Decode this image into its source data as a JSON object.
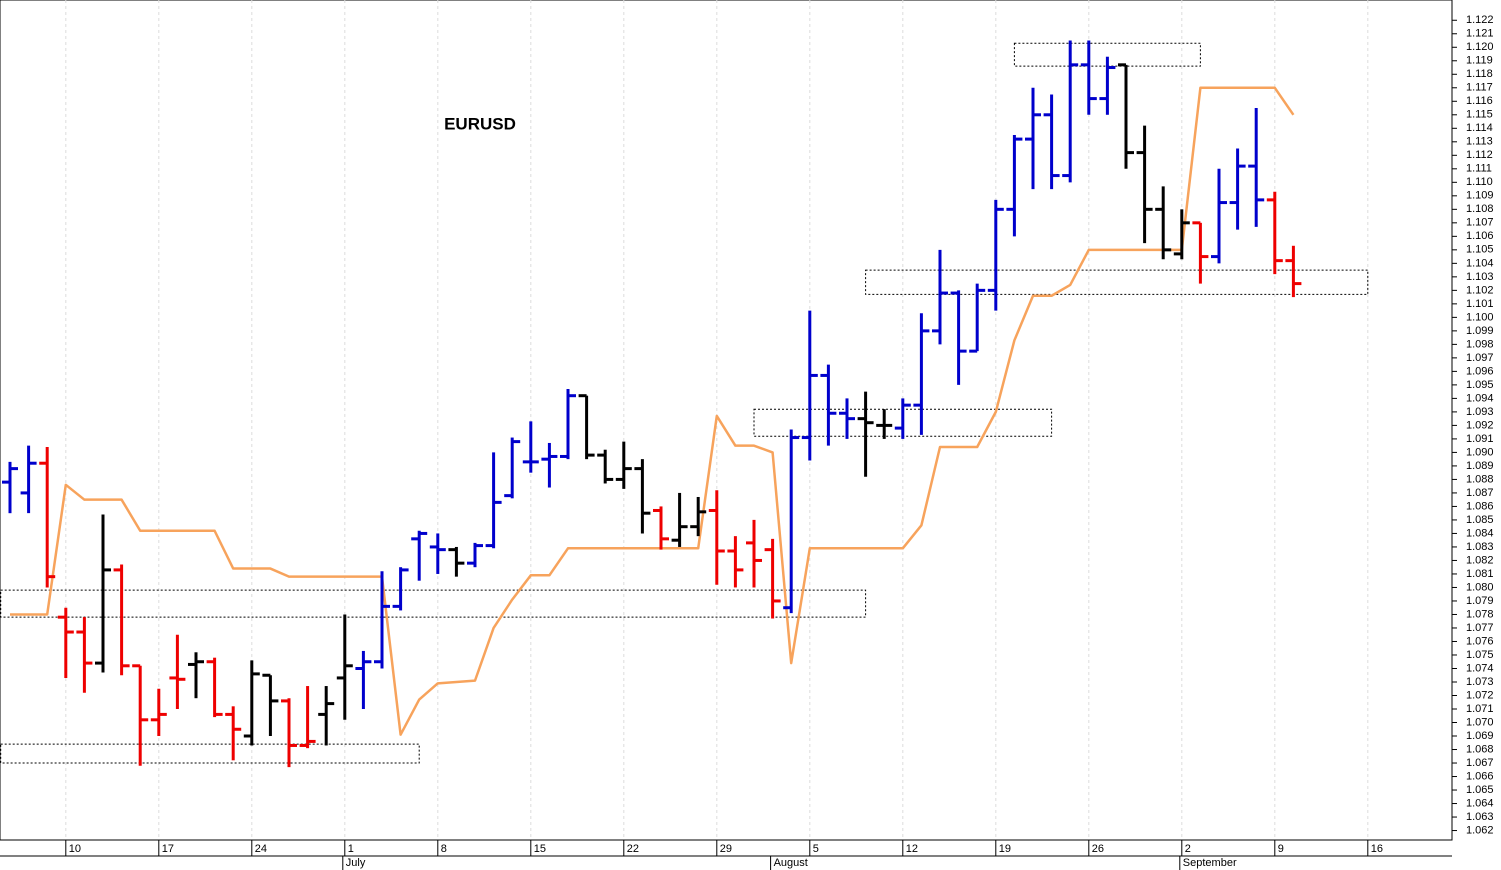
{
  "chart_data": {
    "type": "ohlc",
    "title": "EURUSD",
    "categories": [
      null,
      null,
      null,
      "10",
      null,
      null,
      null,
      null,
      "17",
      null,
      null,
      null,
      null,
      "24",
      null,
      null,
      null,
      null,
      "1",
      null,
      null,
      null,
      null,
      "8",
      null,
      null,
      null,
      null,
      "15",
      null,
      null,
      null,
      null,
      "22",
      null,
      null,
      null,
      null,
      "29",
      null,
      null,
      null,
      null,
      "5",
      null,
      null,
      null,
      null,
      "12",
      null,
      null,
      null,
      null,
      "19",
      null,
      null,
      null,
      null,
      "26",
      null,
      null,
      null,
      null,
      "2",
      null,
      null,
      null,
      null,
      "9",
      null,
      null,
      null,
      null,
      "16"
    ],
    "months": [
      null,
      null,
      null,
      null,
      null,
      null,
      null,
      null,
      null,
      null,
      null,
      null,
      null,
      null,
      null,
      null,
      null,
      null,
      "July",
      null,
      null,
      null,
      null,
      null,
      null,
      null,
      null,
      null,
      null,
      null,
      null,
      null,
      null,
      null,
      null,
      null,
      null,
      null,
      null,
      null,
      null,
      "August",
      null,
      null,
      null,
      null,
      null,
      null,
      null,
      null,
      null,
      null,
      null,
      null,
      null,
      null,
      null,
      null,
      null,
      null,
      null,
      null,
      null,
      "September",
      null,
      null,
      null,
      null,
      null,
      null,
      null,
      null,
      null,
      null
    ],
    "open": [
      1.0878,
      1.087,
      1.0892,
      1.0778,
      1.0767,
      1.0744,
      1.0813,
      1.0742,
      1.0702,
      1.0733,
      1.0743,
      1.0745,
      1.0706,
      1.069,
      1.0735,
      1.0716,
      1.0683,
      1.0706,
      1.0733,
      1.074,
      1.0745,
      1.0786,
      1.0836,
      1.083,
      1.0828,
      1.0818,
      1.0831,
      1.0868,
      1.0893,
      1.0895,
      1.0897,
      1.0942,
      1.0898,
      1.088,
      1.0888,
      1.0857,
      1.0835,
      1.0845,
      1.0857,
      1.0827,
      1.0833,
      1.0828,
      1.0785,
      1.0911,
      1.0957,
      1.0929,
      1.0925,
      1.092,
      1.0918,
      1.0935,
      1.099,
      1.1018,
      1.0975,
      1.102,
      1.108,
      1.1132,
      1.115,
      1.1105,
      1.1187,
      1.1162,
      1.1187,
      1.1122,
      1.108,
      1.1047,
      1.107,
      1.1045,
      1.1085,
      1.1112,
      1.1087,
      1.1042,
      null,
      null,
      null,
      null
    ],
    "high": [
      1.0893,
      1.0905,
      1.0904,
      1.0785,
      1.0778,
      1.0854,
      1.0817,
      1.0742,
      1.0725,
      1.0765,
      1.0752,
      1.0748,
      1.0712,
      1.0746,
      1.0735,
      1.0718,
      1.0727,
      1.0727,
      1.078,
      1.0753,
      1.0812,
      1.0815,
      1.0842,
      1.084,
      1.083,
      1.0833,
      1.09,
      1.0911,
      1.0923,
      1.0907,
      1.0947,
      1.0942,
      1.0902,
      1.0908,
      1.0895,
      1.086,
      1.087,
      1.0867,
      1.0872,
      1.0838,
      1.085,
      1.0836,
      1.0917,
      1.1005,
      1.0965,
      1.094,
      1.0945,
      1.0932,
      1.094,
      1.1003,
      1.105,
      1.102,
      1.1025,
      1.1087,
      1.1135,
      1.117,
      1.1165,
      1.1205,
      1.1205,
      1.1193,
      1.1187,
      1.1142,
      1.1097,
      1.108,
      1.107,
      1.111,
      1.1125,
      1.1155,
      1.1093,
      1.1053,
      null,
      null,
      null,
      null
    ],
    "low": [
      1.0855,
      1.0855,
      1.08,
      1.0733,
      1.0722,
      1.0737,
      1.0735,
      1.0668,
      1.069,
      1.071,
      1.0718,
      1.0704,
      1.0672,
      1.0683,
      1.069,
      1.0667,
      1.0681,
      1.0683,
      1.0702,
      1.071,
      1.074,
      1.0783,
      1.0805,
      1.081,
      1.0808,
      1.0815,
      1.0829,
      1.0866,
      1.0885,
      1.0874,
      1.0895,
      1.0895,
      1.0877,
      1.0873,
      1.084,
      1.0828,
      1.083,
      1.0838,
      1.0802,
      1.08,
      1.08,
      1.0777,
      1.0781,
      1.0894,
      1.0905,
      1.091,
      1.0882,
      1.091,
      1.091,
      1.0913,
      1.098,
      1.095,
      1.0975,
      1.1005,
      1.106,
      1.1095,
      1.1095,
      1.11,
      1.115,
      1.115,
      1.111,
      1.1055,
      1.1043,
      1.1043,
      1.1025,
      1.104,
      1.1065,
      1.1067,
      1.1032,
      1.1015,
      null,
      null,
      null,
      null
    ],
    "close": [
      1.0888,
      1.0892,
      1.0808,
      1.0767,
      1.0744,
      1.0813,
      1.0742,
      1.0702,
      1.0706,
      1.0732,
      1.0745,
      1.0706,
      1.0695,
      1.0736,
      1.0716,
      1.0683,
      1.0686,
      1.0714,
      1.0742,
      1.0745,
      1.0786,
      1.0813,
      1.084,
      1.0828,
      1.0818,
      1.0831,
      1.0863,
      1.0908,
      1.0893,
      1.0897,
      1.0942,
      1.0898,
      1.088,
      1.0888,
      1.0855,
      1.0836,
      1.0845,
      1.0856,
      1.0827,
      1.0813,
      1.082,
      1.079,
      1.0911,
      1.0957,
      1.0929,
      1.0925,
      1.0922,
      1.092,
      1.0935,
      1.099,
      1.1018,
      1.0975,
      1.102,
      1.108,
      1.1132,
      1.115,
      1.1105,
      1.1187,
      1.1162,
      1.1185,
      1.1122,
      1.108,
      1.105,
      1.107,
      1.1045,
      1.1085,
      1.1112,
      1.1087,
      1.1042,
      1.1025,
      null,
      null,
      null,
      null
    ],
    "bar_colors": [
      "#0000cc",
      "#0000cc",
      "#ee0000",
      "#ee0000",
      "#ee0000",
      "#000000",
      "#ee0000",
      "#ee0000",
      "#ee0000",
      "#ee0000",
      "#000000",
      "#ee0000",
      "#ee0000",
      "#000000",
      "#000000",
      "#ee0000",
      "#ee0000",
      "#000000",
      "#000000",
      "#0000cc",
      "#0000cc",
      "#0000cc",
      "#0000cc",
      "#0000cc",
      "#000000",
      "#0000cc",
      "#0000cc",
      "#0000cc",
      "#0000cc",
      "#0000cc",
      "#0000cc",
      "#000000",
      "#000000",
      "#000000",
      "#000000",
      "#ee0000",
      "#000000",
      "#000000",
      "#ee0000",
      "#ee0000",
      "#ee0000",
      "#ee0000",
      "#0000cc",
      "#0000cc",
      "#0000cc",
      "#0000cc",
      "#000000",
      "#000000",
      "#0000cc",
      "#0000cc",
      "#0000cc",
      "#0000cc",
      "#0000cc",
      "#0000cc",
      "#0000cc",
      "#0000cc",
      "#0000cc",
      "#0000cc",
      "#0000cc",
      "#0000cc",
      "#000000",
      "#000000",
      "#000000",
      "#000000",
      "#ee0000",
      "#0000cc",
      "#0000cc",
      "#0000cc",
      "#ee0000",
      "#ee0000",
      null,
      null,
      null,
      null
    ],
    "line": {
      "color": "#f7a35c",
      "values": [
        1.078,
        1.078,
        1.078,
        1.0876,
        1.0865,
        1.0865,
        1.0865,
        1.0842,
        1.0842,
        1.0842,
        1.0842,
        1.0842,
        1.0814,
        1.0814,
        1.0814,
        1.0808,
        1.0808,
        1.0808,
        1.0808,
        1.0808,
        1.0808,
        1.0691,
        1.0717,
        1.0729,
        1.073,
        1.0731,
        1.077,
        1.0791,
        1.0809,
        1.0809,
        1.0829,
        1.0829,
        1.0829,
        1.0829,
        1.0829,
        1.0829,
        1.0829,
        1.0829,
        1.0927,
        1.0905,
        1.0905,
        1.09,
        1.0744,
        1.0829,
        1.0829,
        1.0829,
        1.0829,
        1.0829,
        1.0829,
        1.0846,
        1.0904,
        1.0904,
        1.0904,
        1.093,
        1.0983,
        1.1016,
        1.1016,
        1.1024,
        1.105,
        1.105,
        1.105,
        1.105,
        1.105,
        1.105,
        1.117,
        1.117,
        1.117,
        1.117,
        1.117,
        1.115,
        null,
        null,
        null,
        null
      ]
    },
    "zones": [
      {
        "from": -0.5,
        "to": 22,
        "low": 1.067,
        "high": 1.0684
      },
      {
        "from": -0.5,
        "to": 46,
        "low": 1.0778,
        "high": 1.0798
      },
      {
        "from": 40,
        "to": 56,
        "low": 1.0912,
        "high": 1.0932
      },
      {
        "from": 46,
        "to": 73,
        "low": 1.1017,
        "high": 1.1035
      },
      {
        "from": 54,
        "to": 64,
        "low": 1.1186,
        "high": 1.1203
      }
    ],
    "ylim": [
      1.0613,
      1.1235
    ],
    "yticks": [
      1.062,
      1.063,
      1.064,
      1.065,
      1.066,
      1.067,
      1.068,
      1.069,
      {
        "value": 1.07,
        "label": "1.070"
      },
      1.071,
      1.072,
      1.073,
      1.074,
      1.075,
      1.076,
      1.077,
      1.078,
      1.079,
      {
        "value": 1.08,
        "label": "1.080"
      },
      1.081,
      1.082,
      1.083,
      1.084,
      1.085,
      1.086,
      1.087,
      1.088,
      1.089,
      {
        "value": 1.09,
        "label": "1.090"
      },
      1.091,
      1.092,
      1.093,
      1.094,
      1.095,
      1.096,
      1.097,
      1.098,
      1.099,
      {
        "value": 1.1,
        "label": "1.100"
      },
      1.101,
      1.102,
      1.103,
      1.104,
      1.105,
      1.106,
      1.107,
      1.108,
      1.109,
      {
        "value": 1.11,
        "label": "1.110"
      },
      1.111,
      1.112,
      1.113,
      1.114,
      1.115,
      1.116,
      1.117,
      1.118,
      1.119,
      {
        "value": 1.12,
        "label": "1.120"
      },
      1.121,
      1.122
    ],
    "grid": true
  }
}
